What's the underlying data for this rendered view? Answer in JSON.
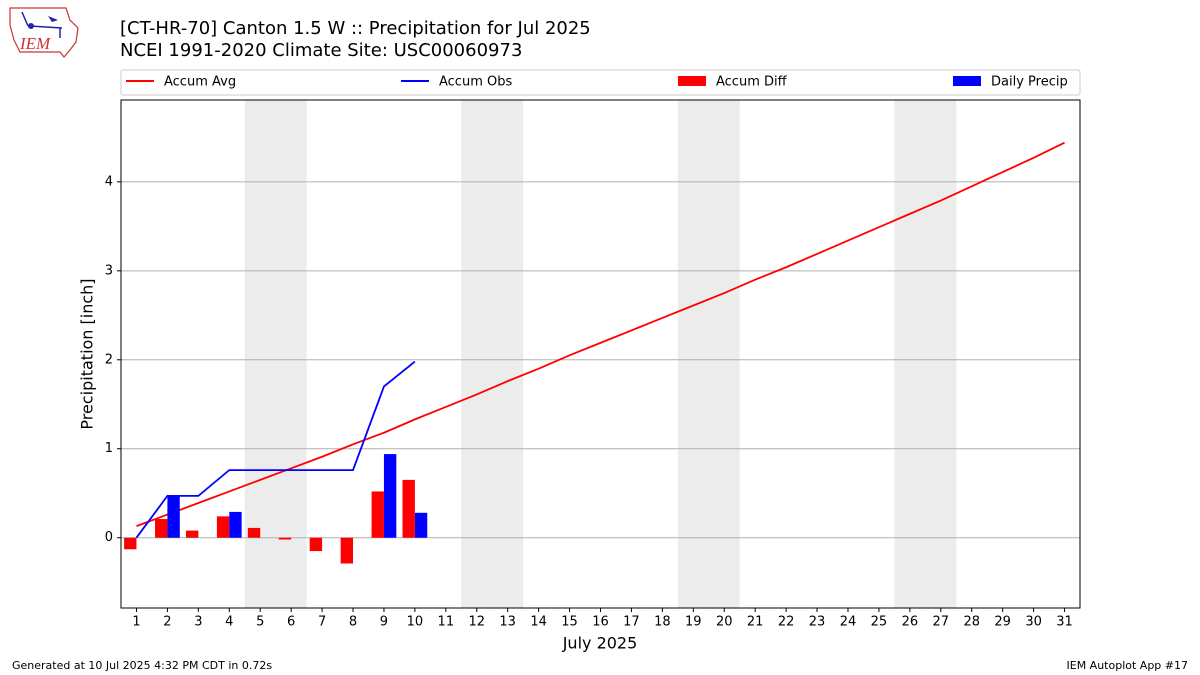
{
  "logo_text": "IEM",
  "footer_left": "Generated at 10 Jul 2025 4:32 PM CDT in 0.72s",
  "footer_right": "IEM Autoplot App #17",
  "chart_data": {
    "type": "combo",
    "title": "[CT-HR-70] Canton 1.5 W :: Precipitation for Jul 2025",
    "subtitle": "NCEI 1991-2020 Climate Site: USC00060973",
    "x_label": "July 2025",
    "y_label": "Precipitation [inch]",
    "x": [
      1,
      2,
      3,
      4,
      5,
      6,
      7,
      8,
      9,
      10,
      11,
      12,
      13,
      14,
      15,
      16,
      17,
      18,
      19,
      20,
      21,
      22,
      23,
      24,
      25,
      26,
      27,
      28,
      29,
      30,
      31
    ],
    "xlim": [
      0.5,
      31.5
    ],
    "xticks": [
      1,
      2,
      3,
      4,
      5,
      6,
      7,
      8,
      9,
      10,
      11,
      12,
      13,
      14,
      15,
      16,
      17,
      18,
      19,
      20,
      21,
      22,
      23,
      24,
      25,
      26,
      27,
      28,
      29,
      30,
      31
    ],
    "ylim": [
      -0.79,
      4.92
    ],
    "yticks": [
      0,
      1,
      2,
      3,
      4
    ],
    "grid": true,
    "weekend_shading": [
      [
        4.5,
        6.5
      ],
      [
        11.5,
        13.5
      ],
      [
        18.5,
        20.5
      ],
      [
        25.5,
        27.5
      ]
    ],
    "series": [
      {
        "name": "Accum Avg",
        "type": "line",
        "color": "#ff0000",
        "values": [
          0.13,
          0.26,
          0.39,
          0.52,
          0.65,
          0.78,
          0.91,
          1.05,
          1.18,
          1.33,
          1.47,
          1.61,
          1.76,
          1.9,
          2.05,
          2.19,
          2.33,
          2.47,
          2.61,
          2.75,
          2.9,
          3.04,
          3.19,
          3.34,
          3.49,
          3.64,
          3.79,
          3.95,
          4.11,
          4.27,
          4.44
        ]
      },
      {
        "name": "Accum Obs",
        "type": "line",
        "color": "#0000ff",
        "values": [
          0.0,
          0.47,
          0.47,
          0.76,
          0.76,
          0.76,
          0.76,
          0.76,
          1.7,
          1.98,
          null,
          null,
          null,
          null,
          null,
          null,
          null,
          null,
          null,
          null,
          null,
          null,
          null,
          null,
          null,
          null,
          null,
          null,
          null,
          null,
          null
        ]
      },
      {
        "name": "Accum Diff",
        "type": "bar",
        "color": "#ff0000",
        "values": [
          -0.13,
          0.21,
          0.08,
          0.24,
          0.11,
          -0.02,
          -0.15,
          -0.29,
          0.52,
          0.65,
          null,
          null,
          null,
          null,
          null,
          null,
          null,
          null,
          null,
          null,
          null,
          null,
          null,
          null,
          null,
          null,
          null,
          null,
          null,
          null,
          null
        ]
      },
      {
        "name": "Daily Precip",
        "type": "bar",
        "color": "#0000ff",
        "values": [
          0,
          0.47,
          0,
          0.29,
          0,
          0,
          0,
          0,
          0.94,
          0.28,
          null,
          null,
          null,
          null,
          null,
          null,
          null,
          null,
          null,
          null,
          null,
          null,
          null,
          null,
          null,
          null,
          null,
          null,
          null,
          null,
          null
        ]
      }
    ]
  }
}
